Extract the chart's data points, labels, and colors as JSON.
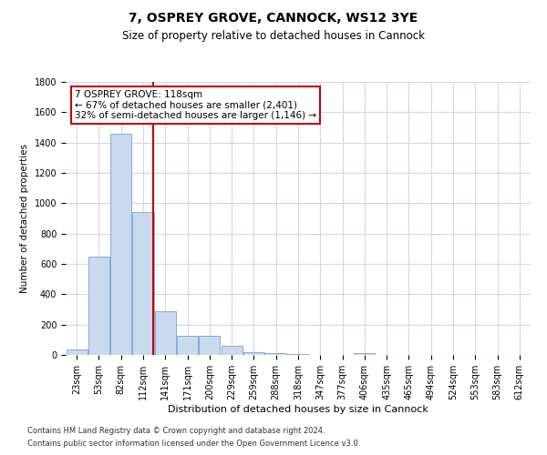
{
  "title": "7, OSPREY GROVE, CANNOCK, WS12 3YE",
  "subtitle": "Size of property relative to detached houses in Cannock",
  "xlabel": "Distribution of detached houses by size in Cannock",
  "ylabel": "Number of detached properties",
  "categories": [
    "23sqm",
    "53sqm",
    "82sqm",
    "112sqm",
    "141sqm",
    "171sqm",
    "200sqm",
    "229sqm",
    "259sqm",
    "288sqm",
    "318sqm",
    "347sqm",
    "377sqm",
    "406sqm",
    "435sqm",
    "465sqm",
    "494sqm",
    "524sqm",
    "553sqm",
    "583sqm",
    "612sqm"
  ],
  "values": [
    35,
    650,
    1460,
    940,
    290,
    125,
    125,
    60,
    20,
    10,
    5,
    2,
    2,
    15,
    0,
    0,
    0,
    0,
    0,
    0,
    0
  ],
  "bar_color": "#c9d9f0",
  "bar_edge_color": "#8aaad0",
  "vline_color": "#cc0000",
  "annotation_line1": "7 OSPREY GROVE: 118sqm",
  "annotation_line2": "← 67% of detached houses are smaller (2,401)",
  "annotation_line3": "32% of semi-detached houses are larger (1,146) →",
  "annotation_box_color": "#ffffff",
  "annotation_box_edge": "#cc0000",
  "ylim": [
    0,
    1800
  ],
  "yticks": [
    0,
    200,
    400,
    600,
    800,
    1000,
    1200,
    1400,
    1600,
    1800
  ],
  "footer_line1": "Contains HM Land Registry data © Crown copyright and database right 2024.",
  "footer_line2": "Contains public sector information licensed under the Open Government Licence v3.0.",
  "bg_color": "#ffffff",
  "grid_color": "#d0d8e8",
  "title_fontsize": 10,
  "subtitle_fontsize": 8.5,
  "tick_fontsize": 7,
  "ylabel_fontsize": 7.5,
  "xlabel_fontsize": 8,
  "footer_fontsize": 6,
  "annotation_fontsize": 7.5
}
